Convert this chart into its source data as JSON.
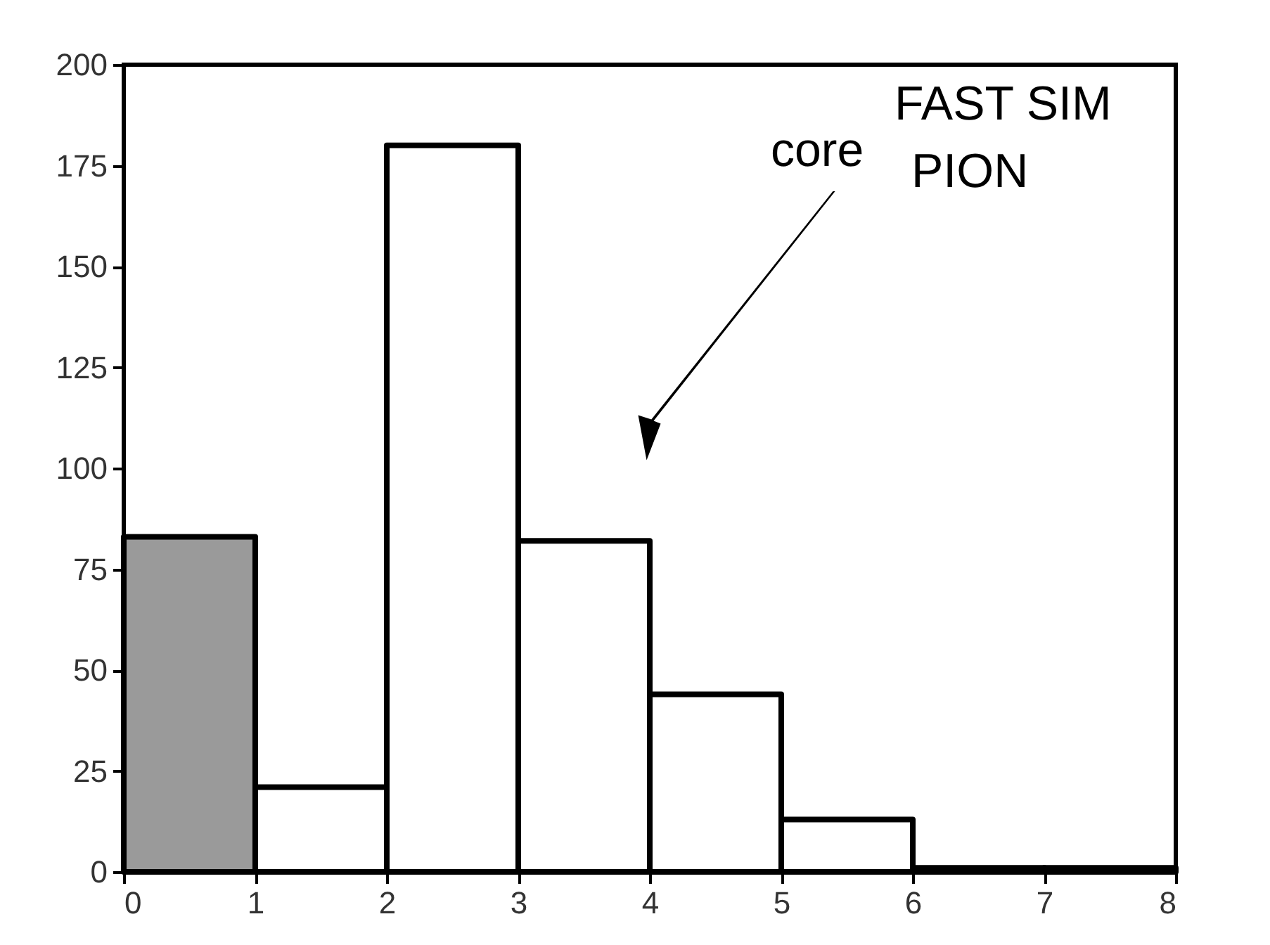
{
  "chart_data": {
    "type": "histogram",
    "bins": [
      0,
      1,
      2,
      3,
      4,
      5,
      6,
      7,
      8
    ],
    "values": [
      83,
      21,
      180,
      82,
      44,
      13,
      1,
      1
    ],
    "colors": [
      "#9a9a9a",
      "#ffffff",
      "#ffffff",
      "#ffffff",
      "#ffffff",
      "#ffffff",
      "#ffffff",
      "#ffffff"
    ],
    "xlim": [
      0,
      8
    ],
    "xticks": [
      0,
      1,
      2,
      3,
      4,
      5,
      6,
      7,
      8
    ],
    "ylim": [
      0,
      200
    ],
    "yticks": [
      0,
      25,
      50,
      75,
      100,
      125,
      150,
      175,
      200
    ],
    "grid": false,
    "annotations": [
      "FAST SIM",
      "PION",
      "core"
    ]
  }
}
